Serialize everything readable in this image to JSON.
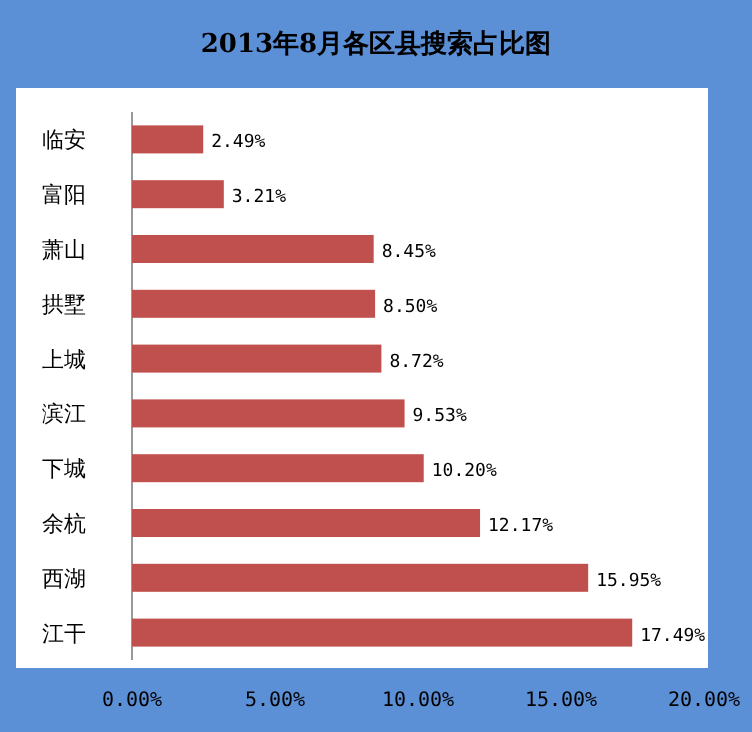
{
  "chart_data": {
    "type": "bar",
    "orientation": "horizontal",
    "title": "2013年8月各区县搜索占比图",
    "categories": [
      "临安",
      "富阳",
      "萧山",
      "拱墅",
      "上城",
      "滨江",
      "下城",
      "余杭",
      "西湖",
      "江干"
    ],
    "values": [
      2.49,
      3.21,
      8.45,
      8.5,
      8.72,
      9.53,
      10.2,
      12.17,
      15.95,
      17.49
    ],
    "value_labels": [
      "2.49%",
      "3.21%",
      "8.45%",
      "8.50%",
      "8.72%",
      "9.53%",
      "10.20%",
      "12.17%",
      "15.95%",
      "17.49%"
    ],
    "color": "#c0504d",
    "xlim": [
      0,
      20
    ],
    "xticks": [
      {
        "value": 0,
        "label": "0.00%"
      },
      {
        "value": 5,
        "label": "5.00%"
      },
      {
        "value": 10,
        "label": "10.00%"
      },
      {
        "value": 15,
        "label": "15.00%"
      },
      {
        "value": 20,
        "label": "20.00%"
      }
    ],
    "grid": false
  }
}
